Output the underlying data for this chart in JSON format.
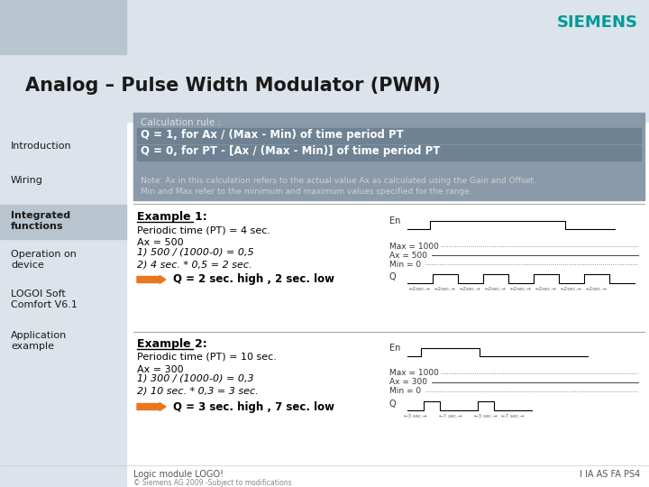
{
  "title": "Analog – Pulse Width Modulator (PWM)",
  "bg_color": "#ffffff",
  "sidebar_bg": "#b8c4ce",
  "top_bar2_color": "#dce3ea",
  "siemens_color": "#009999",
  "siemens_text": "SIEMENS",
  "calc_box_color": "#8a9aaa",
  "highlight_row_color": "#6e8294",
  "nav_items": [
    "Introduction",
    "Wiring",
    "Integrated\nfunctions",
    "Operation on\ndevice",
    "LOGOI Soft\nComfort V6.1",
    "Application\nexample"
  ],
  "active_nav": "Integrated\nfunctions",
  "calc_title": "Calculation rule :",
  "calc_line1": "Q = 1, for Ax / (Max - Min) of time period PT",
  "calc_line2": "Q = 0, for PT - [Ax / (Max - Min)] of time period PT",
  "calc_note": "Note: Ax in this calculation refers to the actual value Ax as calculated using the Gain and Offset.\nMin and Max refer to the minimum and maximum values specified for the range.",
  "ex1_title": "Example 1:",
  "ex1_params": "Periodic time (PT) = 4 sec.\nAx = 500",
  "ex1_calc": "1) 500 / (1000-0) = 0,5\n2) 4 sec. * 0,5 = 2 sec.",
  "ex1_result": "Q = 2 sec. high , 2 sec. low",
  "ex2_title": "Example 2:",
  "ex2_params": "Periodic time (PT) = 10 sec.\nAx = 300",
  "ex2_calc": "1) 300 / (1000-0) = 0,3\n2) 10 sec. * 0,3 = 3 sec.",
  "ex2_result": "Q = 3 sec. high , 7 sec. low",
  "footer_left": "Logic module LOGO!",
  "footer_right": "I IA AS FA PS4",
  "footer_copy": "© Siemens AG 2009 -Subject to modifications",
  "arrow_color": "#e87722"
}
